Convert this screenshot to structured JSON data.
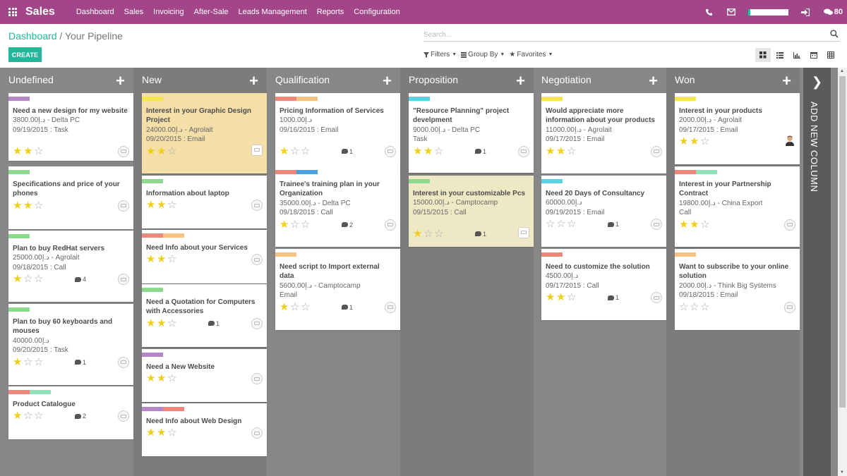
{
  "app": {
    "name": "Sales"
  },
  "menu": [
    "Dashboard",
    "Sales",
    "Invoicing",
    "After-Sale",
    "Leads Management",
    "Reports",
    "Configuration"
  ],
  "topbar": {
    "chat_count": "80",
    "progress": 1.0
  },
  "breadcrumb": {
    "parent": "Dashboard",
    "separator": "/",
    "current": "Your Pipeline"
  },
  "search": {
    "placeholder": "Search..."
  },
  "buttons": {
    "create": "CREATE"
  },
  "filters": {
    "filters": "Filters",
    "group_by": "Group By",
    "favorites": "Favorites"
  },
  "add_column": {
    "label": "ADD NEW COLUMN"
  },
  "colors": {
    "topbar": "#a24689",
    "primary": "#21b799",
    "star": "#f0ce1c",
    "tag_purple": "#b684c8",
    "tag_green": "#8dd98d",
    "tag_salmon": "#f0857a",
    "tag_orange": "#f8c380",
    "tag_yellow": "#f6e552",
    "tag_cyan": "#55d3e3",
    "tag_blue": "#4aa2dc",
    "tag_mint": "#8fe0b5",
    "card_yellow": "#f5dfa9",
    "card_khaki": "#efe8c4"
  },
  "columns": [
    {
      "name": "Undefined",
      "cards": [
        {
          "title": "Need a new design for my website",
          "lines": [
            "3800.00د.إ - Delta PC",
            "09/19/2015 : Task"
          ],
          "stars": 2,
          "tags": [
            "purple"
          ]
        },
        {
          "title": "Specifications and price of your phones",
          "lines": [],
          "stars": 2,
          "tags": [
            "green"
          ]
        },
        {
          "title": "Plan to buy RedHat servers",
          "lines": [
            "25000.00د.إ - Agrolait",
            "09/18/2015 : Call"
          ],
          "stars": 1,
          "messages": "4",
          "tags": [
            "green"
          ]
        },
        {
          "title": "Plan to buy 60 keyboards and mouses",
          "lines": [
            "40000.00د.إ",
            "09/20/2015 : Task"
          ],
          "stars": 1,
          "messages": "1",
          "tags": [
            "green"
          ]
        },
        {
          "title": "Product Catalogue",
          "lines": [],
          "stars": 1,
          "messages": "2",
          "tags": [
            "salmon",
            "mint"
          ]
        }
      ]
    },
    {
      "name": "New",
      "cards": [
        {
          "title": "Interest in your Graphic Design Project",
          "lines": [
            "24000.00د.إ - Agrolait",
            "09/20/2015 : Email"
          ],
          "stars": 2,
          "tags": [
            "yellow"
          ],
          "color": "yellow"
        },
        {
          "title": "Information about laptop",
          "lines": [],
          "stars": 2,
          "tags": [
            "green"
          ]
        },
        {
          "title": "Need Info about your Services",
          "lines": [],
          "stars": 2,
          "tags": [
            "salmon",
            "orange"
          ]
        },
        {
          "title": "Need a Quotation for Computers with Accessories",
          "lines": [],
          "stars": 2,
          "messages": "1",
          "tags": [
            "green"
          ]
        },
        {
          "title": "Need a New Website",
          "lines": [],
          "stars": 2,
          "tags": [
            "purple"
          ]
        },
        {
          "title": "Need Info about Web Design",
          "lines": [],
          "stars": 2,
          "tags": [
            "purple",
            "salmon"
          ]
        }
      ]
    },
    {
      "name": "Qualification",
      "cards": [
        {
          "title": "Pricing Information of Services",
          "lines": [
            "1000.00د.إ",
            "09/16/2015 : Email"
          ],
          "stars": 1,
          "messages": "1",
          "tags": [
            "salmon",
            "orange"
          ]
        },
        {
          "title": "Trainee's training plan in your Organization",
          "lines": [
            "35000.00د.إ - Delta PC",
            "09/18/2015 : Call"
          ],
          "stars": 1,
          "messages": "2",
          "tags": [
            "salmon",
            "blue"
          ]
        },
        {
          "title": "Need script to Import external data",
          "lines": [
            "5600.00د.إ - Camptocamp",
            "Email"
          ],
          "stars": 1,
          "messages": "1",
          "tags": [
            "orange"
          ]
        }
      ]
    },
    {
      "name": "Proposition",
      "cards": [
        {
          "title": "\"Resource Planning\" project develpment",
          "lines": [
            "9000.00د.إ - Delta PC",
            "Task"
          ],
          "stars": 2,
          "messages": "1",
          "tags": [
            "cyan"
          ]
        },
        {
          "title": "Interest in your customizable Pcs",
          "lines": [
            "15000.00د.إ - Camptocamp",
            "09/15/2015 : Call"
          ],
          "stars": 1,
          "messages": "1",
          "tags": [
            "green"
          ],
          "color": "khaki"
        }
      ]
    },
    {
      "name": "Negotiation",
      "cards": [
        {
          "title": "Would appreciate more information about your products",
          "lines": [
            "11000.00د.إ - Agrolait",
            "09/17/2015 : Email"
          ],
          "stars": 2,
          "tags": [
            "yellow"
          ]
        },
        {
          "title": "Need 20 Days of Consultancy",
          "lines": [
            "60000.00د.إ",
            "09/19/2015 : Email"
          ],
          "stars": 0,
          "messages": "1",
          "tags": [
            "cyan"
          ]
        },
        {
          "title": "Need to customize the solution",
          "lines": [
            "4500.00د.إ",
            "09/17/2015 : Call"
          ],
          "stars": 2,
          "messages": "1",
          "tags": [
            "salmon"
          ]
        }
      ]
    },
    {
      "name": "Won",
      "cards": [
        {
          "title": "Interest in your products",
          "lines": [
            "2000.00د.إ - Agrolait",
            "09/17/2015 : Email"
          ],
          "stars": 2,
          "tags": [
            "yellow"
          ],
          "avatar": "photo"
        },
        {
          "title": "Interest in your Partnership Contract",
          "lines": [
            "19800.00د.إ - China Export",
            "Call"
          ],
          "stars": 2,
          "tags": [
            "salmon",
            "mint"
          ]
        },
        {
          "title": "Want to subscribe to your online solution",
          "lines": [
            "2000.00د.إ - Think Big Systems",
            "09/18/2015 : Email"
          ],
          "stars": 0,
          "tags": [
            "orange"
          ]
        }
      ]
    }
  ]
}
